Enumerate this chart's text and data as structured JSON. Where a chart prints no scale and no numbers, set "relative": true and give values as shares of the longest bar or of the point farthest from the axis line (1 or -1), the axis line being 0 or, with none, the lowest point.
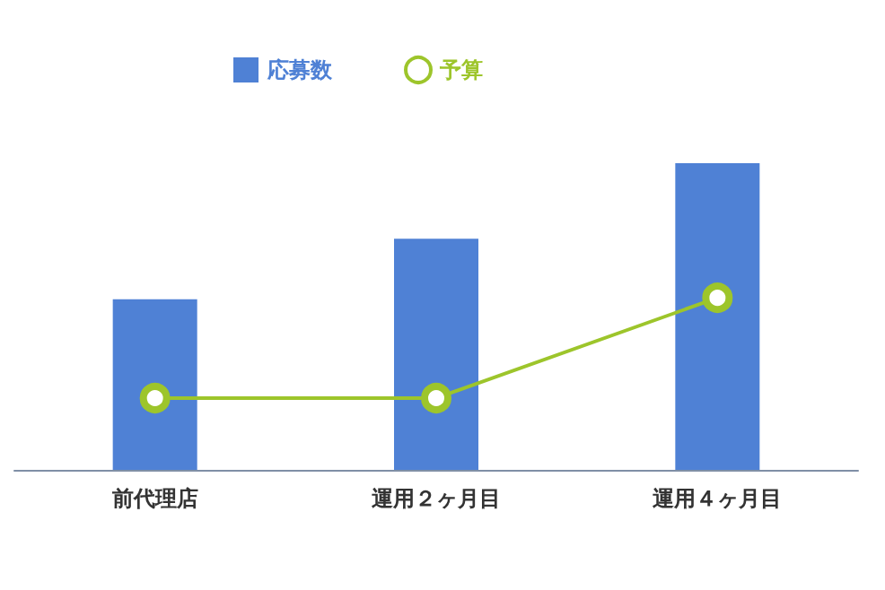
{
  "chart_data": {
    "type": "bar",
    "relative": true,
    "categories": [
      "前代理店",
      "運用２ヶ月目",
      "運用４ヶ月目"
    ],
    "series": [
      {
        "name": "応募数",
        "color": "#4f81d5",
        "values": [
          0.556,
          0.754,
          1
        ]
      },
      {
        "name": "予算",
        "type": "line",
        "color": "#9dc52b",
        "values": [
          0.234,
          0.234,
          0.561
        ]
      }
    ],
    "legend": "top",
    "marker": "circle"
  }
}
